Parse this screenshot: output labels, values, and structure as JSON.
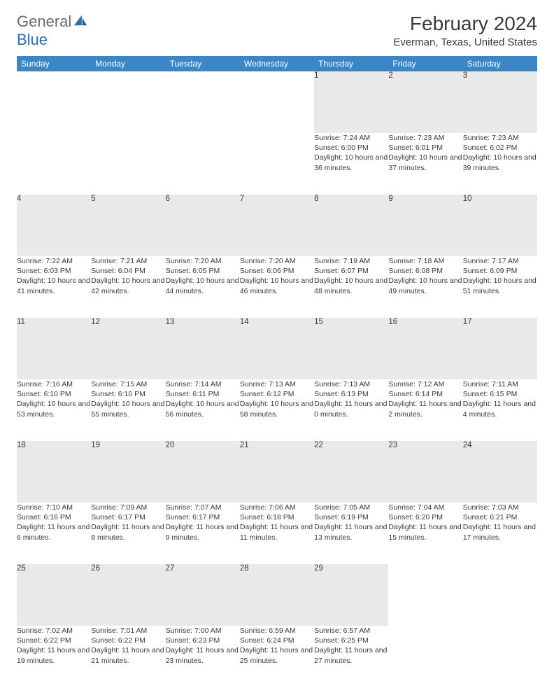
{
  "brand": {
    "name_a": "General",
    "name_b": "Blue"
  },
  "title": "February 2024",
  "location": "Everman, Texas, United States",
  "colors": {
    "header_bg": "#3b86c6",
    "header_text": "#ffffff",
    "daynum_bg": "#e9e9e9",
    "rule": "#2b5a8a",
    "body_text": "#3a3a3a",
    "logo_gray": "#6a6a6a",
    "logo_blue": "#2a6fb5"
  },
  "day_labels": [
    "Sunday",
    "Monday",
    "Tuesday",
    "Wednesday",
    "Thursday",
    "Friday",
    "Saturday"
  ],
  "weeks": [
    [
      null,
      null,
      null,
      null,
      {
        "n": "1",
        "sr": "Sunrise: 7:24 AM",
        "ss": "Sunset: 6:00 PM",
        "dl": "Daylight: 10 hours and 36 minutes."
      },
      {
        "n": "2",
        "sr": "Sunrise: 7:23 AM",
        "ss": "Sunset: 6:01 PM",
        "dl": "Daylight: 10 hours and 37 minutes."
      },
      {
        "n": "3",
        "sr": "Sunrise: 7:23 AM",
        "ss": "Sunset: 6:02 PM",
        "dl": "Daylight: 10 hours and 39 minutes."
      }
    ],
    [
      {
        "n": "4",
        "sr": "Sunrise: 7:22 AM",
        "ss": "Sunset: 6:03 PM",
        "dl": "Daylight: 10 hours and 41 minutes."
      },
      {
        "n": "5",
        "sr": "Sunrise: 7:21 AM",
        "ss": "Sunset: 6:04 PM",
        "dl": "Daylight: 10 hours and 42 minutes."
      },
      {
        "n": "6",
        "sr": "Sunrise: 7:20 AM",
        "ss": "Sunset: 6:05 PM",
        "dl": "Daylight: 10 hours and 44 minutes."
      },
      {
        "n": "7",
        "sr": "Sunrise: 7:20 AM",
        "ss": "Sunset: 6:06 PM",
        "dl": "Daylight: 10 hours and 46 minutes."
      },
      {
        "n": "8",
        "sr": "Sunrise: 7:19 AM",
        "ss": "Sunset: 6:07 PM",
        "dl": "Daylight: 10 hours and 48 minutes."
      },
      {
        "n": "9",
        "sr": "Sunrise: 7:18 AM",
        "ss": "Sunset: 6:08 PM",
        "dl": "Daylight: 10 hours and 49 minutes."
      },
      {
        "n": "10",
        "sr": "Sunrise: 7:17 AM",
        "ss": "Sunset: 6:09 PM",
        "dl": "Daylight: 10 hours and 51 minutes."
      }
    ],
    [
      {
        "n": "11",
        "sr": "Sunrise: 7:16 AM",
        "ss": "Sunset: 6:10 PM",
        "dl": "Daylight: 10 hours and 53 minutes."
      },
      {
        "n": "12",
        "sr": "Sunrise: 7:15 AM",
        "ss": "Sunset: 6:10 PM",
        "dl": "Daylight: 10 hours and 55 minutes."
      },
      {
        "n": "13",
        "sr": "Sunrise: 7:14 AM",
        "ss": "Sunset: 6:11 PM",
        "dl": "Daylight: 10 hours and 56 minutes."
      },
      {
        "n": "14",
        "sr": "Sunrise: 7:13 AM",
        "ss": "Sunset: 6:12 PM",
        "dl": "Daylight: 10 hours and 58 minutes."
      },
      {
        "n": "15",
        "sr": "Sunrise: 7:13 AM",
        "ss": "Sunset: 6:13 PM",
        "dl": "Daylight: 11 hours and 0 minutes."
      },
      {
        "n": "16",
        "sr": "Sunrise: 7:12 AM",
        "ss": "Sunset: 6:14 PM",
        "dl": "Daylight: 11 hours and 2 minutes."
      },
      {
        "n": "17",
        "sr": "Sunrise: 7:11 AM",
        "ss": "Sunset: 6:15 PM",
        "dl": "Daylight: 11 hours and 4 minutes."
      }
    ],
    [
      {
        "n": "18",
        "sr": "Sunrise: 7:10 AM",
        "ss": "Sunset: 6:16 PM",
        "dl": "Daylight: 11 hours and 6 minutes."
      },
      {
        "n": "19",
        "sr": "Sunrise: 7:09 AM",
        "ss": "Sunset: 6:17 PM",
        "dl": "Daylight: 11 hours and 8 minutes."
      },
      {
        "n": "20",
        "sr": "Sunrise: 7:07 AM",
        "ss": "Sunset: 6:17 PM",
        "dl": "Daylight: 11 hours and 9 minutes."
      },
      {
        "n": "21",
        "sr": "Sunrise: 7:06 AM",
        "ss": "Sunset: 6:18 PM",
        "dl": "Daylight: 11 hours and 11 minutes."
      },
      {
        "n": "22",
        "sr": "Sunrise: 7:05 AM",
        "ss": "Sunset: 6:19 PM",
        "dl": "Daylight: 11 hours and 13 minutes."
      },
      {
        "n": "23",
        "sr": "Sunrise: 7:04 AM",
        "ss": "Sunset: 6:20 PM",
        "dl": "Daylight: 11 hours and 15 minutes."
      },
      {
        "n": "24",
        "sr": "Sunrise: 7:03 AM",
        "ss": "Sunset: 6:21 PM",
        "dl": "Daylight: 11 hours and 17 minutes."
      }
    ],
    [
      {
        "n": "25",
        "sr": "Sunrise: 7:02 AM",
        "ss": "Sunset: 6:22 PM",
        "dl": "Daylight: 11 hours and 19 minutes."
      },
      {
        "n": "26",
        "sr": "Sunrise: 7:01 AM",
        "ss": "Sunset: 6:22 PM",
        "dl": "Daylight: 11 hours and 21 minutes."
      },
      {
        "n": "27",
        "sr": "Sunrise: 7:00 AM",
        "ss": "Sunset: 6:23 PM",
        "dl": "Daylight: 11 hours and 23 minutes."
      },
      {
        "n": "28",
        "sr": "Sunrise: 6:59 AM",
        "ss": "Sunset: 6:24 PM",
        "dl": "Daylight: 11 hours and 25 minutes."
      },
      {
        "n": "29",
        "sr": "Sunrise: 6:57 AM",
        "ss": "Sunset: 6:25 PM",
        "dl": "Daylight: 11 hours and 27 minutes."
      },
      null,
      null
    ]
  ]
}
